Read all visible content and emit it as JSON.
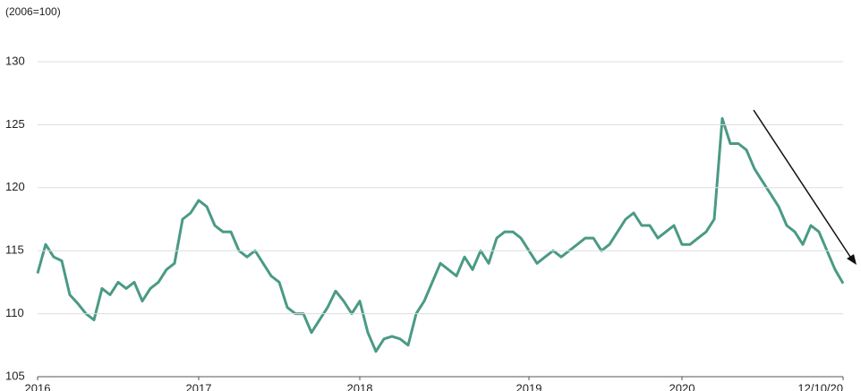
{
  "chart_data": {
    "type": "line",
    "subtitle": "(2006=100)",
    "categories": [
      "2016",
      null,
      null,
      null,
      null,
      null,
      null,
      null,
      null,
      null,
      null,
      null,
      null,
      null,
      null,
      null,
      null,
      null,
      null,
      null,
      "2017",
      null,
      null,
      null,
      null,
      null,
      null,
      null,
      null,
      null,
      null,
      null,
      null,
      null,
      null,
      null,
      null,
      null,
      null,
      null,
      "2018",
      null,
      null,
      null,
      null,
      null,
      null,
      null,
      null,
      null,
      null,
      null,
      null,
      null,
      null,
      null,
      null,
      null,
      null,
      null,
      null,
      "2019",
      null,
      null,
      null,
      null,
      null,
      null,
      null,
      null,
      null,
      null,
      null,
      null,
      null,
      null,
      null,
      null,
      null,
      null,
      "2020",
      null,
      null,
      null,
      null,
      null,
      null,
      null,
      null,
      null,
      null,
      null,
      null,
      null,
      null,
      null,
      null,
      null,
      null,
      null,
      "12/10/20"
    ],
    "values": [
      113.2,
      115.5,
      114.5,
      114.2,
      111.5,
      110.8,
      110.0,
      109.5,
      112.0,
      111.5,
      112.5,
      112.0,
      112.5,
      111.0,
      112.0,
      112.5,
      113.5,
      114.0,
      117.5,
      118.0,
      119.0,
      118.5,
      117.0,
      116.5,
      116.5,
      115.0,
      114.5,
      115.0,
      114.0,
      113.0,
      112.5,
      110.5,
      110.0,
      110.0,
      108.5,
      109.5,
      110.5,
      111.8,
      111.0,
      110.0,
      111.0,
      108.5,
      107.0,
      108.0,
      108.2,
      108.0,
      107.5,
      110.0,
      111.0,
      112.5,
      114.0,
      113.5,
      113.0,
      114.5,
      113.5,
      115.0,
      114.0,
      116.0,
      116.5,
      116.5,
      116.0,
      115.0,
      114.0,
      114.5,
      115.0,
      114.5,
      115.0,
      115.5,
      116.0,
      116.0,
      115.0,
      115.5,
      116.5,
      117.5,
      118.0,
      117.0,
      117.0,
      116.0,
      116.5,
      117.0,
      115.5,
      115.5,
      116.0,
      116.5,
      117.5,
      125.5,
      123.5,
      123.5,
      123.0,
      121.5,
      120.5,
      119.5,
      118.5,
      117.0,
      116.5,
      115.5,
      117.0,
      116.5,
      115.0,
      113.5,
      112.4
    ],
    "color": "#4a9a85",
    "ylim": [
      105,
      130
    ],
    "yticks": [
      105,
      110,
      115,
      120,
      125,
      130
    ],
    "grid": true
  }
}
